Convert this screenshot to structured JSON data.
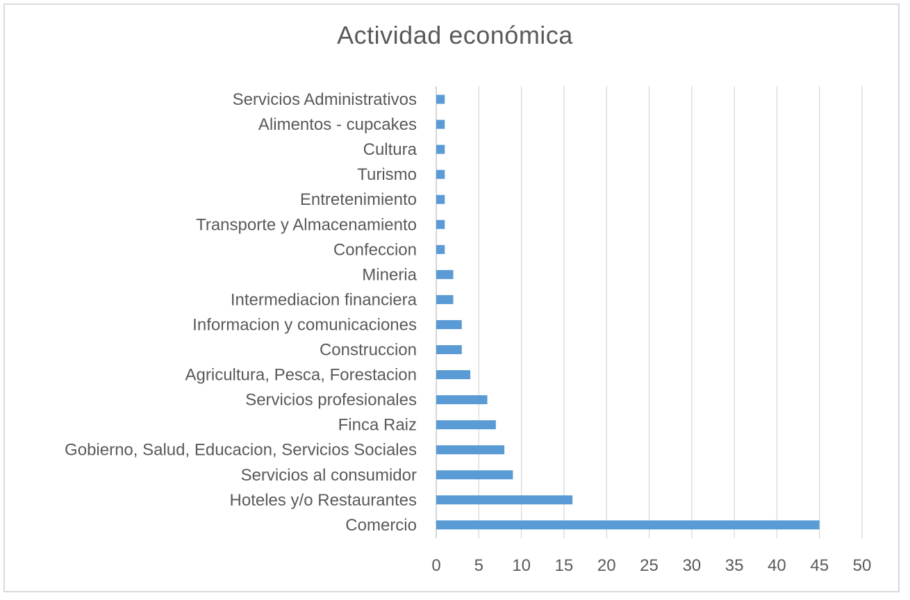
{
  "chart_data": {
    "type": "bar",
    "orientation": "horizontal",
    "title": "Actividad económica",
    "xlabel": "",
    "ylabel": "",
    "categories": [
      "Servicios Administrativos",
      "Alimentos - cupcakes",
      "Cultura",
      "Turismo",
      "Entretenimiento",
      "Transporte y Almacenamiento",
      "Confeccion",
      "Mineria",
      "Intermediacion financiera",
      "Informacion y comunicaciones",
      "Construccion",
      "Agricultura, Pesca, Forestacion",
      "Servicios profesionales",
      "Finca Raiz",
      "Gobierno, Salud, Educacion, Servicios Sociales",
      "Servicios al consumidor",
      "Hoteles y/o Restaurantes",
      "Comercio"
    ],
    "values": [
      1,
      1,
      1,
      1,
      1,
      1,
      1,
      2,
      2,
      3,
      3,
      4,
      6,
      7,
      8,
      9,
      16,
      45
    ],
    "xlim": [
      0,
      50
    ],
    "xticks": [
      "0",
      "5",
      "10",
      "15",
      "20",
      "25",
      "30",
      "35",
      "40",
      "45",
      "50"
    ],
    "grid": true,
    "legend": "none",
    "bar_color": "#5b9bd5",
    "grid_color": "#d9d9d9",
    "text_color": "#595959"
  }
}
